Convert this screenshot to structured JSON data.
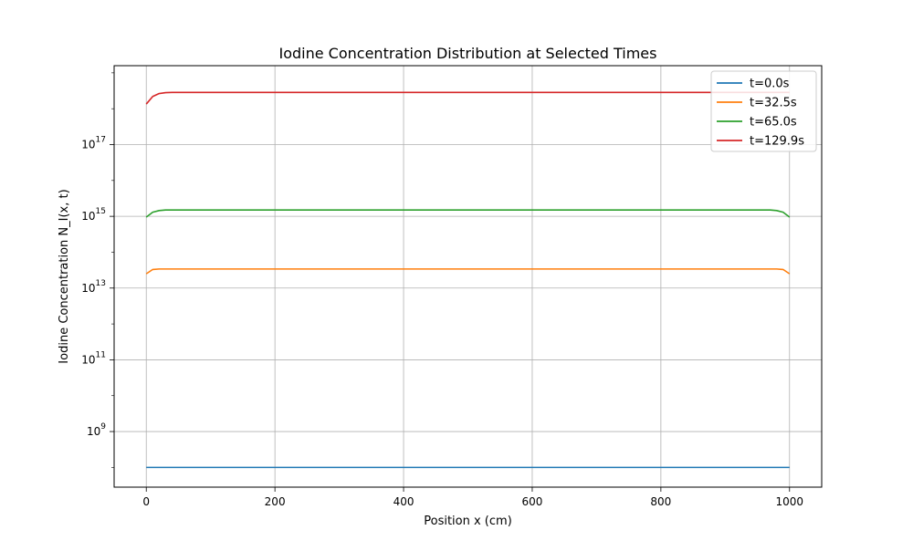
{
  "chart_data": {
    "type": "line",
    "title": "Iodine Concentration Distribution at Selected Times",
    "xlabel": "Position x (cm)",
    "ylabel": "Iodine Concentration N_I(x, t)",
    "yscale": "log",
    "xlim": [
      -50,
      1050
    ],
    "ylim_log10": [
      7.45,
      19.2
    ],
    "grid": true,
    "legend_position": "top-right",
    "x_ticks": [
      {
        "value": 0,
        "label": "0"
      },
      {
        "value": 200,
        "label": "200"
      },
      {
        "value": 400,
        "label": "400"
      },
      {
        "value": 600,
        "label": "600"
      },
      {
        "value": 800,
        "label": "800"
      },
      {
        "value": 1000,
        "label": "1000"
      }
    ],
    "y_ticks": [
      {
        "exp": 9,
        "base": "10",
        "sup": "9"
      },
      {
        "exp": 11,
        "base": "10",
        "sup": "11"
      },
      {
        "exp": 13,
        "base": "10",
        "sup": "13"
      },
      {
        "exp": 15,
        "base": "10",
        "sup": "15"
      },
      {
        "exp": 17,
        "base": "10",
        "sup": "17"
      }
    ],
    "series": [
      {
        "name": "t=0.0s",
        "color": "#1f77b4",
        "x": [
          0,
          1000
        ],
        "y": [
          100000000.0,
          100000000.0
        ]
      },
      {
        "name": "t=32.5s",
        "color": "#ff7f0e",
        "x": [
          0,
          10,
          20,
          30,
          500,
          970,
          980,
          990,
          1000
        ],
        "y": [
          25000000000000.0,
          33000000000000.0,
          34000000000000.0,
          34000000000000.0,
          34000000000000.0,
          34000000000000.0,
          34000000000000.0,
          33000000000000.0,
          25000000000000.0
        ]
      },
      {
        "name": "t=65.0s",
        "color": "#2ca02c",
        "x": [
          0,
          10,
          20,
          30,
          40,
          500,
          960,
          970,
          980,
          990,
          1000
        ],
        "y": [
          950000000000000.0,
          1300000000000000.0,
          1450000000000000.0,
          1500000000000000.0,
          1500000000000000.0,
          1500000000000000.0,
          1500000000000000.0,
          1500000000000000.0,
          1450000000000000.0,
          1300000000000000.0,
          950000000000000.0
        ]
      },
      {
        "name": "t=129.9s",
        "color": "#d62728",
        "x": [
          0,
          10,
          20,
          30,
          40,
          50,
          500,
          1000
        ],
        "y": [
          1.35e+18,
          2.2e+18,
          2.65e+18,
          2.8e+18,
          2.85e+18,
          2.85e+18,
          2.85e+18,
          2.85e+18
        ]
      }
    ]
  }
}
